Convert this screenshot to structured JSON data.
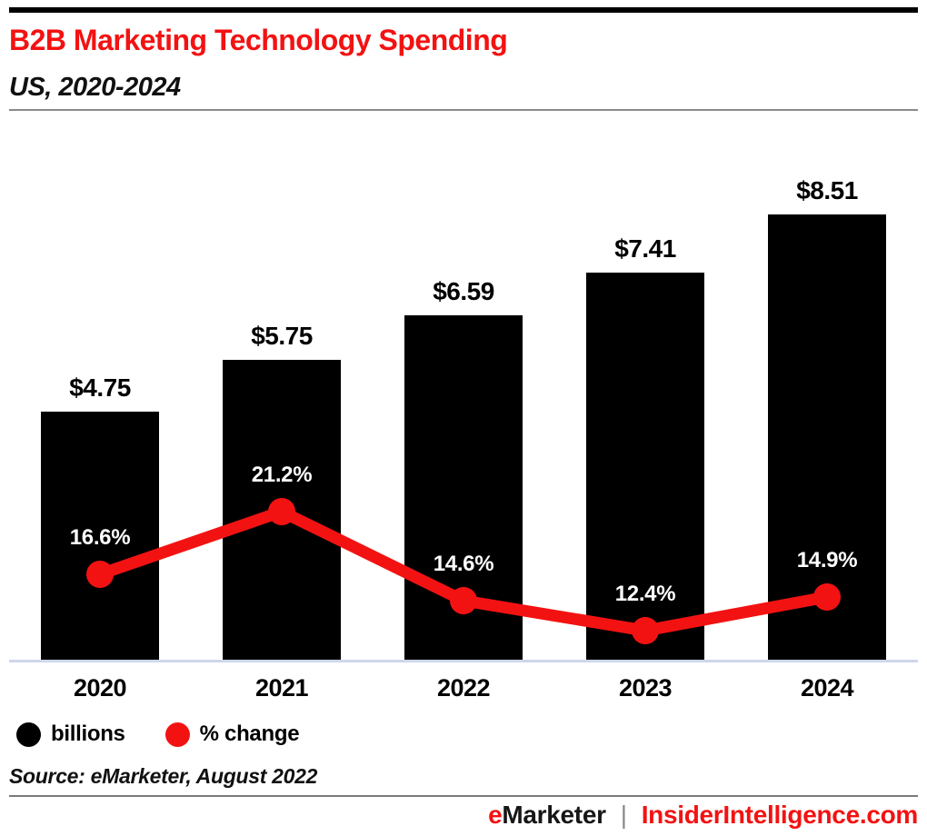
{
  "colors": {
    "brand_red": "#f31212",
    "bar_black": "#000000",
    "baseline": "#ccd7ea",
    "rule_gray": "#7a7a7a"
  },
  "header": {
    "title": "B2B Marketing Technology Spending",
    "subtitle": "US, 2020-2024"
  },
  "chart_data": {
    "type": "bar",
    "title": "B2B Marketing Technology Spending",
    "subtitle": "US, 2020-2024",
    "categories": [
      "2020",
      "2021",
      "2022",
      "2023",
      "2024"
    ],
    "series": [
      {
        "name": "billions",
        "type": "bar",
        "color": "#000000",
        "values": [
          4.75,
          5.75,
          6.59,
          7.41,
          8.51
        ],
        "labels": [
          "$4.75",
          "$5.75",
          "$6.59",
          "$7.41",
          "$8.51"
        ]
      },
      {
        "name": "% change",
        "type": "line",
        "color": "#f31212",
        "values": [
          16.6,
          21.2,
          14.6,
          12.4,
          14.9
        ],
        "labels": [
          "16.6%",
          "21.2%",
          "14.6%",
          "12.4%",
          "14.9%"
        ]
      }
    ],
    "xlabel": "",
    "ylabel": "",
    "ylim_bars": [
      0,
      9.8
    ],
    "grid": false,
    "legend_position": "bottom-left",
    "value_labels_shown": true
  },
  "legend": {
    "items": [
      {
        "label": "billions",
        "color": "#000000",
        "marker": "circle"
      },
      {
        "label": "% change",
        "color": "#f31212",
        "marker": "circle"
      }
    ]
  },
  "source": {
    "text": "Source: eMarketer, August 2022"
  },
  "footer": {
    "brand_e": "e",
    "brand_rest": "Marketer",
    "separator": "|",
    "site": "InsiderIntelligence.com"
  }
}
